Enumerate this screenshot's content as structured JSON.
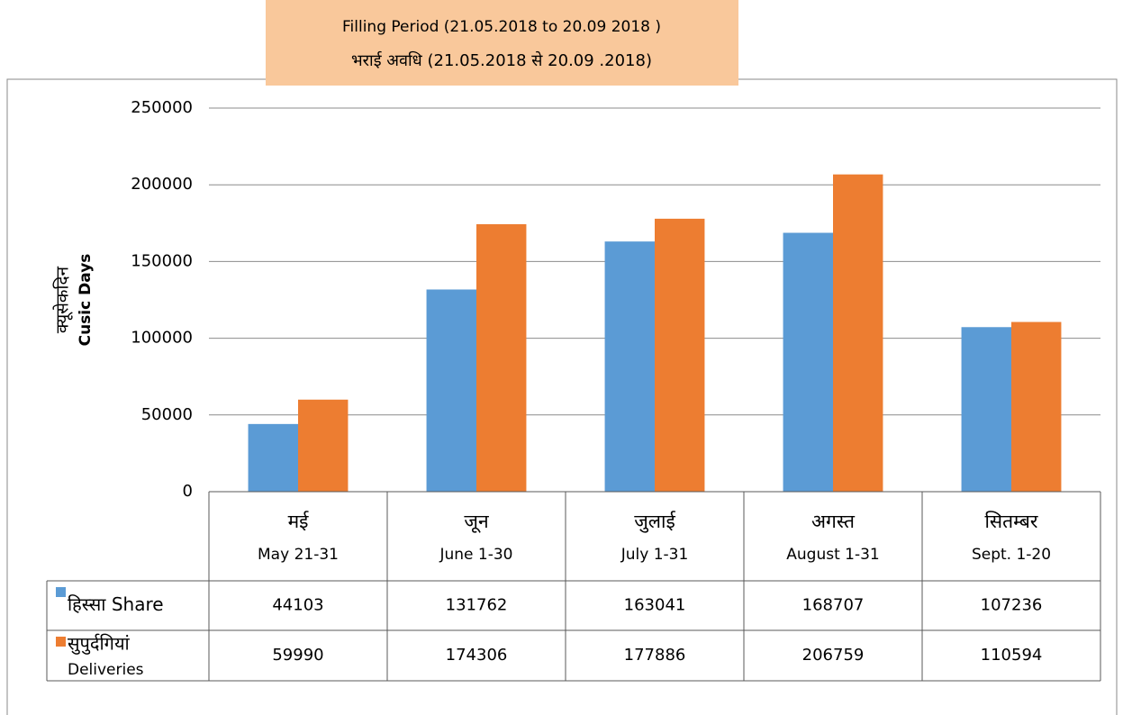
{
  "chart_data": {
    "type": "bar",
    "title": "Filling Period (21.05.2018  to 20.09 2018 )",
    "subtitle": "भराई अवधि (21.05.2018 से 20.09 .2018)",
    "y_label": [
      "क्यूसेकदिन",
      "Cusic Days"
    ],
    "categories": [
      [
        "मई",
        "May 21-31"
      ],
      [
        "जून",
        "June 1-30"
      ],
      [
        "जुलाई",
        "July 1-31"
      ],
      [
        "अगस्त",
        "August 1-31"
      ],
      [
        "सितम्बर",
        "Sept.   1-20"
      ]
    ],
    "series": [
      {
        "name": [
          "हिस्सा Share"
        ],
        "color": "#5b9bd5",
        "values": [
          44103,
          131762,
          163041,
          168707,
          107236
        ]
      },
      {
        "name": [
          "सुपुर्दगियां",
          "Deliveries"
        ],
        "color": "#ed7d31",
        "values": [
          59990,
          174306,
          177886,
          206759,
          110594
        ]
      }
    ],
    "ylim": [
      0,
      250000
    ],
    "yticks": [
      0,
      50000,
      100000,
      150000,
      200000,
      250000
    ],
    "grid": true
  }
}
